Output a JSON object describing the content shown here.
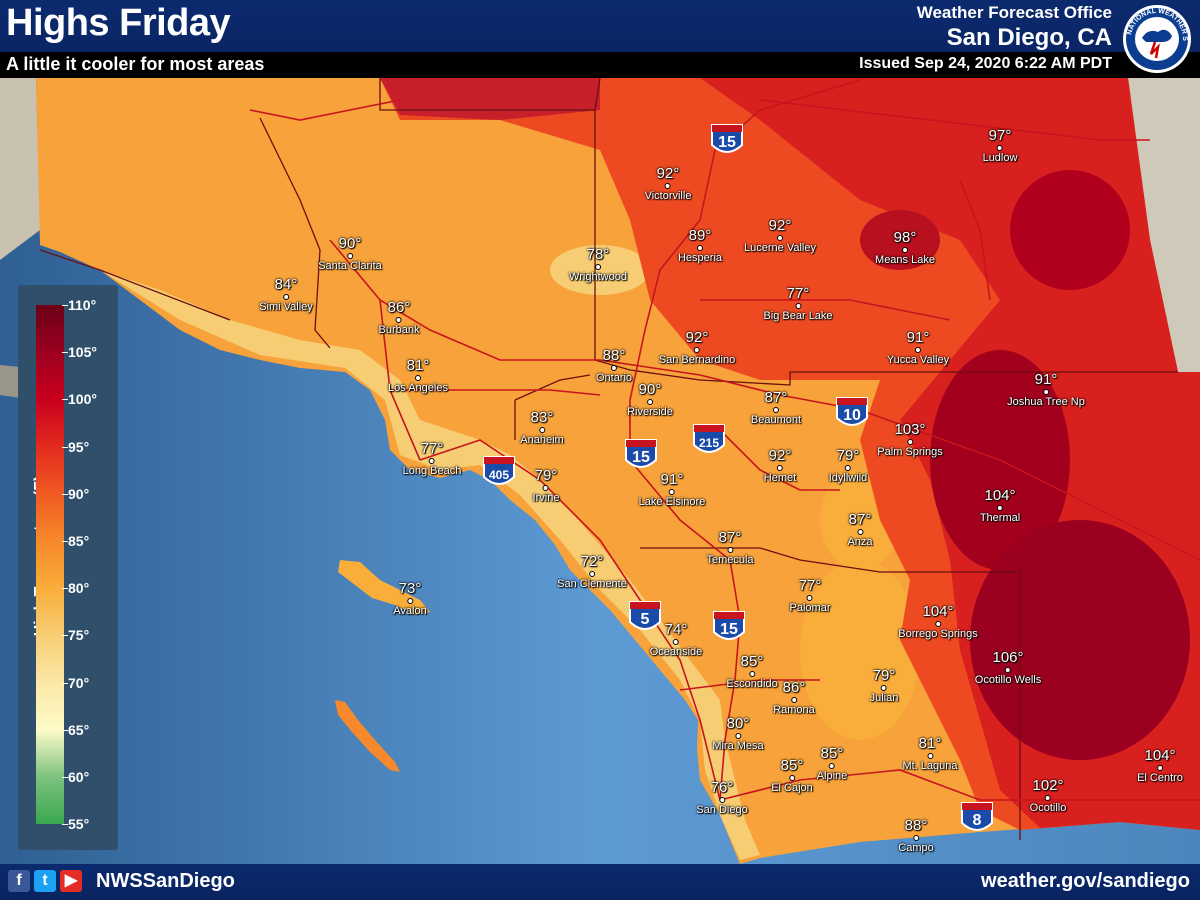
{
  "header": {
    "title": "Highs Friday",
    "subtitle": "A little it cooler for most areas",
    "office_line": "Weather Forecast Office",
    "office_city": "San Diego, CA",
    "issued": "Issued Sep 24, 2020 6:22 AM PDT",
    "logo_text": "NATIONAL WEATHER SERVICE"
  },
  "legend": {
    "title": "High Temperature (F)",
    "labels": [
      "110°",
      "105°",
      "100°",
      "95°",
      "90°",
      "85°",
      "80°",
      "75°",
      "70°",
      "65°",
      "60°",
      "55°"
    ],
    "colors": [
      "#6b0018",
      "#9c0020",
      "#c8001e",
      "#e32a1e",
      "#f05a22",
      "#f7882b",
      "#f9ad3a",
      "#f7cd73",
      "#fbe8a6",
      "#fdfbc8",
      "#7dc27f",
      "#39a84e"
    ]
  },
  "cities": [
    {
      "temp": "97°",
      "name": "Ludlow"
    },
    {
      "temp": "92°",
      "name": "Victorville"
    },
    {
      "temp": "89°",
      "name": "Hesperia"
    },
    {
      "temp": "92°",
      "name": "Lucerne Valley"
    },
    {
      "temp": "98°",
      "name": "Means Lake"
    },
    {
      "temp": "90°",
      "name": "Santa Clarita"
    },
    {
      "temp": "84°",
      "name": "Simi Valley"
    },
    {
      "temp": "78°",
      "name": "Wrightwood"
    },
    {
      "temp": "77°",
      "name": "Big Bear Lake"
    },
    {
      "temp": "86°",
      "name": "Burbank"
    },
    {
      "temp": "92°",
      "name": "San Bernardino"
    },
    {
      "temp": "91°",
      "name": "Yucca Valley"
    },
    {
      "temp": "81°",
      "name": "Los Angeles"
    },
    {
      "temp": "88°",
      "name": "Ontario"
    },
    {
      "temp": "90°",
      "name": "Riverside"
    },
    {
      "temp": "87°",
      "name": "Beaumont"
    },
    {
      "temp": "91°",
      "name": "Joshua Tree Np"
    },
    {
      "temp": "83°",
      "name": "Anaheim"
    },
    {
      "temp": "103°",
      "name": "Palm Springs"
    },
    {
      "temp": "77°",
      "name": "Long Beach"
    },
    {
      "temp": "79°",
      "name": "Irvine"
    },
    {
      "temp": "92°",
      "name": "Hemet"
    },
    {
      "temp": "79°",
      "name": "Idyllwild"
    },
    {
      "temp": "91°",
      "name": "Lake Elsinore"
    },
    {
      "temp": "104°",
      "name": "Thermal"
    },
    {
      "temp": "87°",
      "name": "Anza"
    },
    {
      "temp": "87°",
      "name": "Temecula"
    },
    {
      "temp": "72°",
      "name": "San Clemente"
    },
    {
      "temp": "73°",
      "name": "Avalon"
    },
    {
      "temp": "77°",
      "name": "Palomar"
    },
    {
      "temp": "104°",
      "name": "Borrego Springs"
    },
    {
      "temp": "74°",
      "name": "Oceanside"
    },
    {
      "temp": "85°",
      "name": "Escondido"
    },
    {
      "temp": "106°",
      "name": "Ocotillo Wells"
    },
    {
      "temp": "86°",
      "name": "Ramona"
    },
    {
      "temp": "79°",
      "name": "Julian"
    },
    {
      "temp": "80°",
      "name": "Mira Mesa"
    },
    {
      "temp": "81°",
      "name": "Mt. Laguna"
    },
    {
      "temp": "85°",
      "name": "El Cajon"
    },
    {
      "temp": "85°",
      "name": "Alpine"
    },
    {
      "temp": "104°",
      "name": "El Centro"
    },
    {
      "temp": "76°",
      "name": "San Diego"
    },
    {
      "temp": "102°",
      "name": "Ocotillo"
    },
    {
      "temp": "88°",
      "name": "Campo"
    }
  ],
  "highways": [
    {
      "label": "15",
      "type": "interstate"
    },
    {
      "label": "10",
      "type": "interstate"
    },
    {
      "label": "215",
      "type": "interstate"
    },
    {
      "label": "15",
      "type": "interstate"
    },
    {
      "label": "405",
      "type": "interstate"
    },
    {
      "label": "5",
      "type": "interstate"
    },
    {
      "label": "15",
      "type": "interstate"
    },
    {
      "label": "8",
      "type": "interstate"
    }
  ],
  "footer": {
    "handle": "NWSSanDiego",
    "website": "weather.gov/sandiego",
    "social_icons": [
      "facebook-icon",
      "twitter-icon",
      "youtube-icon"
    ]
  },
  "colors": {
    "header_bg": "#0b2a6e",
    "ocean": "#4a86bf",
    "ocean_light": "#6aa7dc"
  }
}
